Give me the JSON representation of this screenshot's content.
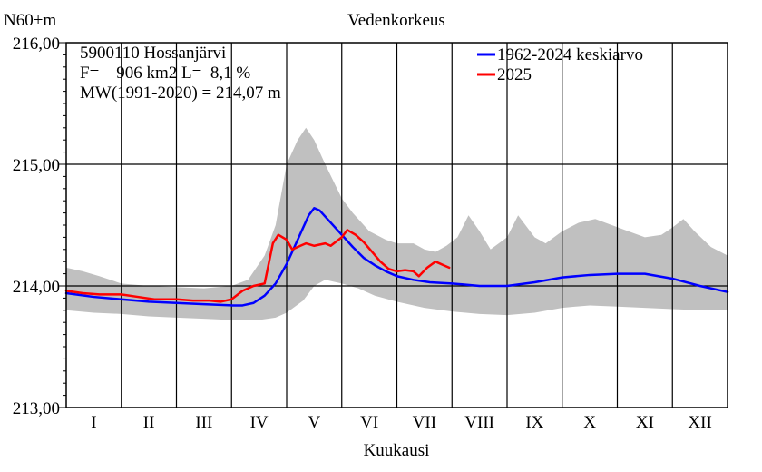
{
  "chart_data": {
    "type": "line",
    "title": "Vedenkorkeus",
    "ylabel": "N60+m",
    "xlabel": "Kuukausi",
    "ylim": [
      213,
      216
    ],
    "y_ticks": [
      {
        "value": 213,
        "label": "213,00"
      },
      {
        "value": 214,
        "label": "214,00"
      },
      {
        "value": 215,
        "label": "215,00"
      },
      {
        "value": 216,
        "label": "216,00"
      }
    ],
    "categories": [
      "I",
      "II",
      "III",
      "IV",
      "V",
      "VI",
      "VII",
      "VIII",
      "IX",
      "X",
      "XI",
      "XII"
    ],
    "x_unit": "month",
    "grid": true,
    "legend_position": "top-right",
    "info_lines": [
      "5900110 Hossanjärvi",
      "F=    906 km2 L=  8,1 %",
      "MW(1991-2020) = 214,07 m"
    ],
    "band": {
      "color": "#c0c0c0",
      "upper": [
        [
          0,
          214.15
        ],
        [
          0.3,
          214.12
        ],
        [
          0.6,
          214.08
        ],
        [
          1.0,
          214.02
        ],
        [
          1.5,
          214.0
        ],
        [
          2.0,
          213.99
        ],
        [
          2.5,
          213.98
        ],
        [
          3.0,
          214.0
        ],
        [
          3.3,
          214.05
        ],
        [
          3.6,
          214.25
        ],
        [
          3.8,
          214.5
        ],
        [
          4.0,
          215.0
        ],
        [
          4.2,
          215.2
        ],
        [
          4.35,
          215.3
        ],
        [
          4.5,
          215.2
        ],
        [
          4.7,
          215.0
        ],
        [
          5.0,
          214.72
        ],
        [
          5.2,
          214.6
        ],
        [
          5.5,
          214.45
        ],
        [
          5.8,
          214.38
        ],
        [
          6.0,
          214.35
        ],
        [
          6.3,
          214.35
        ],
        [
          6.5,
          214.3
        ],
        [
          6.7,
          214.28
        ],
        [
          6.9,
          214.33
        ],
        [
          7.1,
          214.4
        ],
        [
          7.3,
          214.58
        ],
        [
          7.5,
          214.45
        ],
        [
          7.7,
          214.3
        ],
        [
          8.0,
          214.4
        ],
        [
          8.2,
          214.58
        ],
        [
          8.5,
          214.4
        ],
        [
          8.7,
          214.35
        ],
        [
          9.0,
          214.45
        ],
        [
          9.3,
          214.52
        ],
        [
          9.6,
          214.55
        ],
        [
          9.9,
          214.5
        ],
        [
          10.2,
          214.45
        ],
        [
          10.5,
          214.4
        ],
        [
          10.8,
          214.42
        ],
        [
          11.0,
          214.48
        ],
        [
          11.2,
          214.55
        ],
        [
          11.4,
          214.45
        ],
        [
          11.7,
          214.32
        ],
        [
          12.0,
          214.25
        ]
      ],
      "lower": [
        [
          0,
          213.8
        ],
        [
          0.5,
          213.78
        ],
        [
          1.0,
          213.77
        ],
        [
          1.5,
          213.75
        ],
        [
          2.0,
          213.74
        ],
        [
          2.5,
          213.73
        ],
        [
          3.0,
          213.72
        ],
        [
          3.5,
          213.72
        ],
        [
          3.8,
          213.74
        ],
        [
          4.0,
          213.78
        ],
        [
          4.3,
          213.88
        ],
        [
          4.5,
          214.0
        ],
        [
          4.7,
          214.05
        ],
        [
          5.0,
          214.02
        ],
        [
          5.3,
          213.98
        ],
        [
          5.6,
          213.92
        ],
        [
          6.0,
          213.87
        ],
        [
          6.5,
          213.82
        ],
        [
          7.0,
          213.79
        ],
        [
          7.5,
          213.77
        ],
        [
          8.0,
          213.76
        ],
        [
          8.5,
          213.78
        ],
        [
          9.0,
          213.82
        ],
        [
          9.5,
          213.84
        ],
        [
          10.0,
          213.83
        ],
        [
          10.5,
          213.82
        ],
        [
          11.0,
          213.81
        ],
        [
          11.5,
          213.8
        ],
        [
          12.0,
          213.8
        ]
      ]
    },
    "series": [
      {
        "name": "1962-2024 keskiarvo",
        "color": "#0000ff",
        "points": [
          [
            0,
            213.94
          ],
          [
            0.5,
            213.91
          ],
          [
            1.0,
            213.89
          ],
          [
            1.5,
            213.87
          ],
          [
            2.0,
            213.86
          ],
          [
            2.5,
            213.85
          ],
          [
            3.0,
            213.84
          ],
          [
            3.2,
            213.84
          ],
          [
            3.4,
            213.86
          ],
          [
            3.6,
            213.92
          ],
          [
            3.8,
            214.02
          ],
          [
            4.0,
            214.18
          ],
          [
            4.2,
            214.38
          ],
          [
            4.4,
            214.58
          ],
          [
            4.5,
            214.64
          ],
          [
            4.6,
            214.62
          ],
          [
            4.8,
            214.52
          ],
          [
            5.0,
            214.42
          ],
          [
            5.2,
            214.32
          ],
          [
            5.4,
            214.23
          ],
          [
            5.6,
            214.17
          ],
          [
            5.8,
            214.12
          ],
          [
            6.0,
            214.08
          ],
          [
            6.3,
            214.05
          ],
          [
            6.6,
            214.03
          ],
          [
            7.0,
            214.02
          ],
          [
            7.5,
            214.0
          ],
          [
            8.0,
            214.0
          ],
          [
            8.5,
            214.03
          ],
          [
            9.0,
            214.07
          ],
          [
            9.5,
            214.09
          ],
          [
            10.0,
            214.1
          ],
          [
            10.5,
            214.1
          ],
          [
            11.0,
            214.06
          ],
          [
            11.5,
            214.0
          ],
          [
            12.0,
            213.95
          ]
        ]
      },
      {
        "name": "2025",
        "color": "#ff0000",
        "points": [
          [
            0,
            213.96
          ],
          [
            0.3,
            213.94
          ],
          [
            0.6,
            213.93
          ],
          [
            1.0,
            213.93
          ],
          [
            1.3,
            213.91
          ],
          [
            1.6,
            213.89
          ],
          [
            2.0,
            213.89
          ],
          [
            2.3,
            213.88
          ],
          [
            2.6,
            213.88
          ],
          [
            2.8,
            213.87
          ],
          [
            3.0,
            213.89
          ],
          [
            3.2,
            213.96
          ],
          [
            3.4,
            214.0
          ],
          [
            3.6,
            214.02
          ],
          [
            3.75,
            214.35
          ],
          [
            3.85,
            214.42
          ],
          [
            4.0,
            214.38
          ],
          [
            4.1,
            214.3
          ],
          [
            4.25,
            214.33
          ],
          [
            4.35,
            214.35
          ],
          [
            4.5,
            214.33
          ],
          [
            4.7,
            214.35
          ],
          [
            4.8,
            214.33
          ],
          [
            5.0,
            214.4
          ],
          [
            5.1,
            214.46
          ],
          [
            5.25,
            214.42
          ],
          [
            5.4,
            214.36
          ],
          [
            5.55,
            214.28
          ],
          [
            5.7,
            214.2
          ],
          [
            5.85,
            214.14
          ],
          [
            6.0,
            214.12
          ],
          [
            6.15,
            214.13
          ],
          [
            6.3,
            214.12
          ],
          [
            6.4,
            214.08
          ],
          [
            6.55,
            214.15
          ],
          [
            6.7,
            214.2
          ],
          [
            6.85,
            214.17
          ],
          [
            6.95,
            214.15
          ]
        ]
      }
    ]
  }
}
